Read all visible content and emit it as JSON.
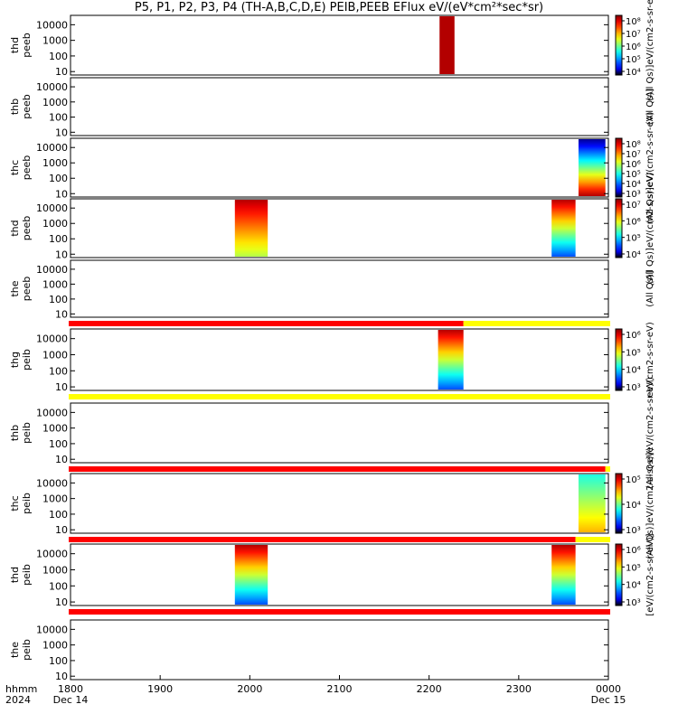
{
  "title": "P5, P1, P2, P3, P4 (TH-A,B,C,D,E) PEIB,PEEB EFlux eV/(eV*cm²*sec*sr)",
  "chart_data": {
    "type": "heatmap",
    "x_axis": {
      "ticks": [
        "1800",
        "1900",
        "2000",
        "2100",
        "2200",
        "2300",
        "0000"
      ],
      "row_labels": [
        "hhmm",
        "2024"
      ],
      "start_date_label": "Dec 14",
      "end_date_label": "Dec 15",
      "range": [
        "1800",
        "0000"
      ]
    },
    "y_axis_ticks": [
      "10",
      "100",
      "1000",
      "10000"
    ],
    "y_scale": "log",
    "panels": [
      {
        "probe": "thd",
        "species": "peeb",
        "ylabels": [
          "thd",
          "peeb"
        ],
        "cbar_ticks": [
          "10⁴",
          "10⁵",
          "10⁶",
          "10⁷",
          "10⁸"
        ],
        "cbar_label": "(All Qs)]eV/(cm2-s-sr-eV)",
        "data_blocks": [
          {
            "start": "2207",
            "end": "2217",
            "top": "red",
            "bottom": "red"
          }
        ],
        "mode_bar_below": null
      },
      {
        "probe": "thb",
        "species": "peeb",
        "ylabels": [
          "thb",
          "peeb"
        ],
        "cbar_ticks": [],
        "cbar_label": "(All Qs)]",
        "data_blocks": [],
        "mode_bar_below": null
      },
      {
        "probe": "thc",
        "species": "peeb",
        "ylabels": [
          "thc",
          "peeb"
        ],
        "cbar_ticks": [
          "10³",
          "10⁴",
          "10⁵",
          "10⁶",
          "10⁷",
          "10⁸"
        ],
        "cbar_label": "(All Qs)]eV/(cm2-s-sr-eV)",
        "data_blocks": [
          {
            "start": "2340",
            "end": "2358",
            "top": "dark",
            "bottom": "red"
          }
        ],
        "mode_bar_below": null
      },
      {
        "probe": "thd",
        "species": "peeb",
        "ylabels": [
          "thd",
          "peeb"
        ],
        "cbar_ticks": [
          "10⁴",
          "10⁵",
          "10⁶",
          "10⁷"
        ],
        "cbar_label": "(All Qs)]eV/(cm2-s-sr-eV)",
        "data_blocks": [
          {
            "start": "1950",
            "end": "1972",
            "top": "red",
            "bottom": "green"
          },
          {
            "start": "2322",
            "end": "2338",
            "top": "red",
            "bottom": "blue"
          }
        ],
        "mode_bar_below": null
      },
      {
        "probe": "the",
        "species": "peeb",
        "ylabels": [
          "the",
          "peeb"
        ],
        "cbar_ticks": [],
        "cbar_label": "(All Qs)]",
        "data_blocks": [],
        "mode_bar_below": {
          "red_until": "2223",
          "then": "yellow"
        }
      },
      {
        "probe": "thg",
        "species": "peib",
        "ylabels": [
          "thg",
          "peib"
        ],
        "cbar_ticks": [
          "10³",
          "10⁴",
          "10⁵",
          "10⁶"
        ],
        "cbar_label": "eV/(cm2-s-sr-eV)",
        "data_blocks": [
          {
            "start": "2206",
            "end": "2223",
            "top": "red",
            "bottom": "blue"
          }
        ],
        "mode_bar_below": {
          "red_until": null,
          "then": "yellow"
        }
      },
      {
        "probe": "thb",
        "species": "peib",
        "ylabels": [
          "thb",
          "peib"
        ],
        "cbar_ticks": [],
        "cbar_label": "(All Qs)]eV/(cm2-s-sr-eV)",
        "data_blocks": [],
        "mode_bar_below": {
          "red_until": "2358",
          "then": "yellow"
        }
      },
      {
        "probe": "thc",
        "species": "peib",
        "ylabels": [
          "thc",
          "peib"
        ],
        "cbar_ticks": [
          "10³",
          "10⁴",
          "10⁵"
        ],
        "cbar_label": "(All Qs)]eV/(cm2-s-sr-eV)",
        "data_blocks": [
          {
            "start": "2340",
            "end": "2358",
            "top": "cyan",
            "bottom": "yellow"
          }
        ],
        "mode_bar_below": {
          "red_until": "2338",
          "then": "yellow"
        }
      },
      {
        "probe": "thd",
        "species": "peib",
        "ylabels": [
          "thd",
          "peib"
        ],
        "cbar_ticks": [
          "10³",
          "10⁴",
          "10⁵",
          "10⁶"
        ],
        "cbar_label": "[eV/(cm2-s-sr-eV)]",
        "data_blocks": [
          {
            "start": "1950",
            "end": "1972",
            "top": "red",
            "bottom": "blue"
          },
          {
            "start": "2322",
            "end": "2338",
            "top": "red",
            "bottom": "blue"
          }
        ],
        "mode_bar_below": {
          "red_until": "0000",
          "then": "red"
        }
      },
      {
        "probe": "the",
        "species": "peib",
        "ylabels": [
          "the",
          "peib"
        ],
        "cbar_ticks": [],
        "cbar_label": "",
        "data_blocks": [],
        "mode_bar_below": null
      }
    ]
  }
}
